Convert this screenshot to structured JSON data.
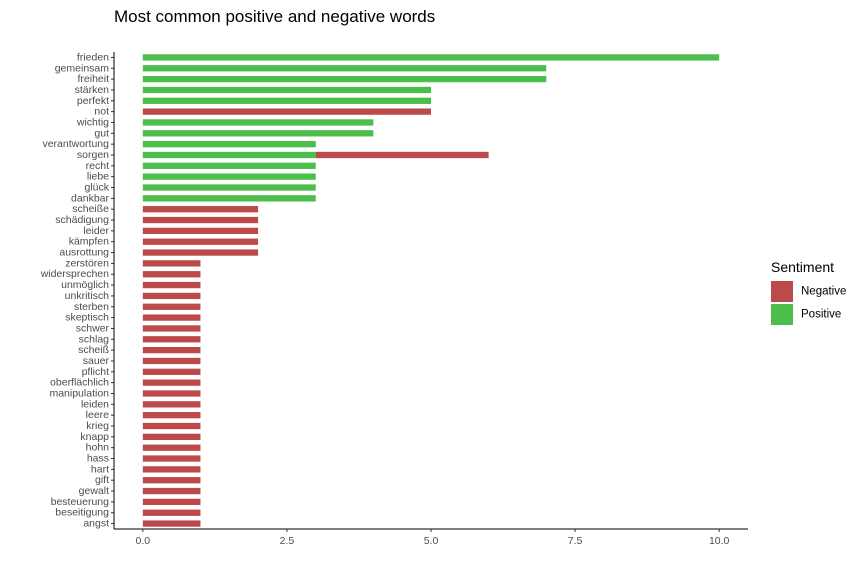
{
  "chart_data": {
    "type": "bar",
    "orientation": "horizontal",
    "title": "Most common positive and negative words",
    "xlabel": "",
    "ylabel": "",
    "xlim": [
      -0.5,
      10.5
    ],
    "xticks": [
      0.0,
      2.5,
      5.0,
      7.5,
      10.0
    ],
    "xtick_labels": [
      "0.0",
      "2.5",
      "5.0",
      "7.5",
      "10.0"
    ],
    "grid": false,
    "legend_position": "right",
    "legend": {
      "title": "Sentiment",
      "items": [
        {
          "name": "Negative",
          "color": "#BC4A4A"
        },
        {
          "name": "Positive",
          "color": "#4BBE4B"
        }
      ]
    },
    "categories": [
      "frieden",
      "gemeinsam",
      "freiheit",
      "stärken",
      "perfekt",
      "not",
      "wichtig",
      "gut",
      "verantwortung",
      "sorgen",
      "recht",
      "liebe",
      "glück",
      "dankbar",
      "scheiße",
      "schädigung",
      "leider",
      "kämpfen",
      "ausrottung",
      "zerstören",
      "widersprechen",
      "unmöglich",
      "unkritisch",
      "sterben",
      "skeptisch",
      "schwer",
      "schlag",
      "scheiß",
      "sauer",
      "pflicht",
      "oberflächlich",
      "manipulation",
      "leiden",
      "leere",
      "krieg",
      "knapp",
      "hohn",
      "hass",
      "hart",
      "gift",
      "gewalt",
      "besteuerung",
      "beseitigung",
      "angst"
    ],
    "series": [
      {
        "name": "Positive",
        "color": "#4BBE4B",
        "values": [
          10,
          7,
          7,
          5,
          5,
          0,
          4,
          4,
          3,
          3,
          3,
          3,
          3,
          3,
          0,
          0,
          0,
          0,
          0,
          0,
          0,
          0,
          0,
          0,
          0,
          0,
          0,
          0,
          0,
          0,
          0,
          0,
          0,
          0,
          0,
          0,
          0,
          0,
          0,
          0,
          0,
          0,
          0,
          0
        ]
      },
      {
        "name": "Negative",
        "color": "#BC4A4A",
        "values": [
          0,
          0,
          0,
          0,
          0,
          5,
          0,
          0,
          0,
          3,
          0,
          0,
          0,
          0,
          2,
          2,
          2,
          2,
          2,
          1,
          1,
          1,
          1,
          1,
          1,
          1,
          1,
          1,
          1,
          1,
          1,
          1,
          1,
          1,
          1,
          1,
          1,
          1,
          1,
          1,
          1,
          1,
          1,
          1
        ]
      }
    ]
  }
}
